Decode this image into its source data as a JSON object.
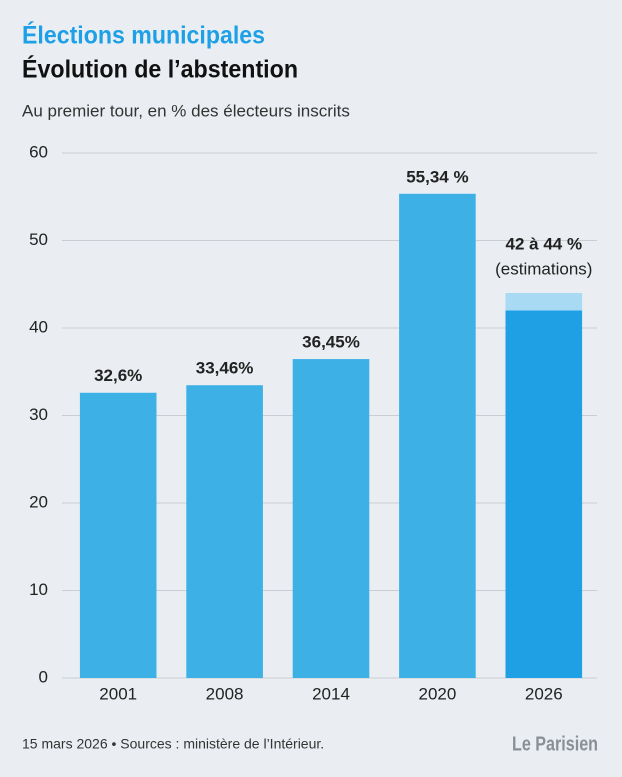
{
  "chart_data": {
    "type": "bar",
    "title": "Élections municipales",
    "subtitle": "Évolution de l’abstention",
    "y_axis_label": "Au premier tour, en % des électeurs inscrits",
    "categories": [
      "2001",
      "2008",
      "2014",
      "2020",
      "2026"
    ],
    "series": [
      {
        "color": "#3db1e6",
        "values": [
          32.6,
          33.46,
          36.45,
          55.34,
          null
        ],
        "value_labels": [
          "32,6%",
          "33,46%",
          "36,45%",
          "55,34 %",
          null
        ]
      },
      {
        "color": "#1fa0e5",
        "values": [
          null,
          null,
          null,
          null,
          42
        ],
        "value_labels": [
          null,
          null,
          null,
          null,
          "42 à 44 %"
        ]
      },
      {
        "color": "#a8daf4",
        "values": [
          null,
          null,
          null,
          null,
          2
        ]
      }
    ],
    "annotation": "(estimations)",
    "ylim": [
      0,
      60
    ],
    "yticks": [
      0,
      10,
      20,
      30,
      40,
      50,
      60
    ],
    "grid": true,
    "footer": "15 mars 2026 • Sources : ministère de l’Intérieur.",
    "logo": "Le Parisien"
  }
}
